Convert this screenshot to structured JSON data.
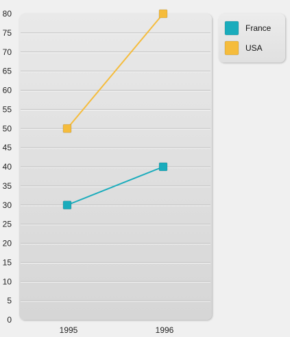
{
  "chart_data": {
    "type": "line",
    "x": [
      "1995",
      "1996"
    ],
    "series": [
      {
        "name": "France",
        "values": [
          30,
          40
        ],
        "color": "#1aacbc"
      },
      {
        "name": "USA",
        "values": [
          50,
          80
        ],
        "color": "#f5bc3c"
      }
    ],
    "ylim": [
      0,
      80
    ],
    "ytick_step": 5,
    "grid": true,
    "legend_position": "top-right"
  }
}
